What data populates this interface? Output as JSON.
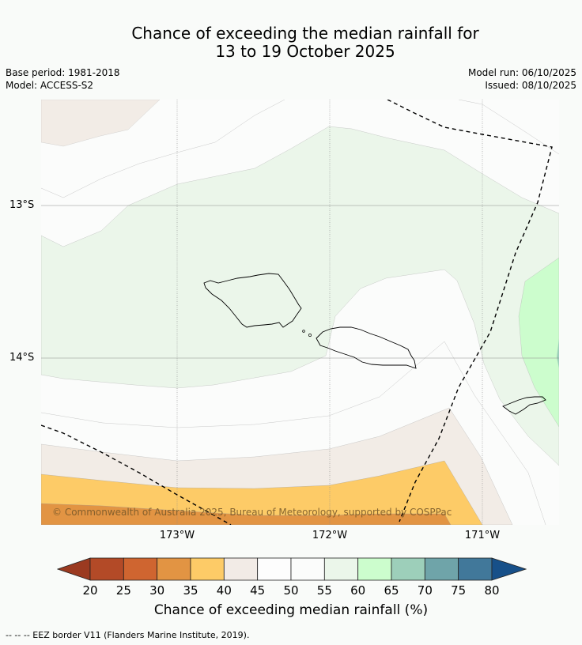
{
  "title": {
    "line1": "Chance of exceeding the median rainfall for",
    "line2": "13 to 19 October 2025"
  },
  "meta": {
    "base_period": "Base period: 1981-2018",
    "model": "Model: ACCESS-S2",
    "model_run": "Model run: 06/10/2025",
    "issued": "Issued: 08/10/2025"
  },
  "copyright": "© Commonwealth of Australia 2025, Bureau of Meteorology, supported by COSPPac",
  "lat_ticks": [
    "13°S",
    "14°S"
  ],
  "lon_ticks": [
    "173°W",
    "172°W",
    "171°W"
  ],
  "colorbar": {
    "label": "Chance of exceeding median rainfall (%)",
    "ticks": [
      "20",
      "25",
      "30",
      "35",
      "40",
      "45",
      "50",
      "55",
      "60",
      "65",
      "70",
      "75",
      "80"
    ],
    "colors": [
      "#b34a27",
      "#cf6530",
      "#e29443",
      "#fdcb67",
      "#f2ebe6",
      "#fdfdfd",
      "#fbfcfb",
      "#ebf6ea",
      "#ccfdcd",
      "#9dcfba",
      "#6fa4a9",
      "#41789a"
    ],
    "low_color": "#9b3a20",
    "high_color": "#175089"
  },
  "footer": "--  --  -- EEZ border V11 (Flanders Marine Institute, 2019)."
}
